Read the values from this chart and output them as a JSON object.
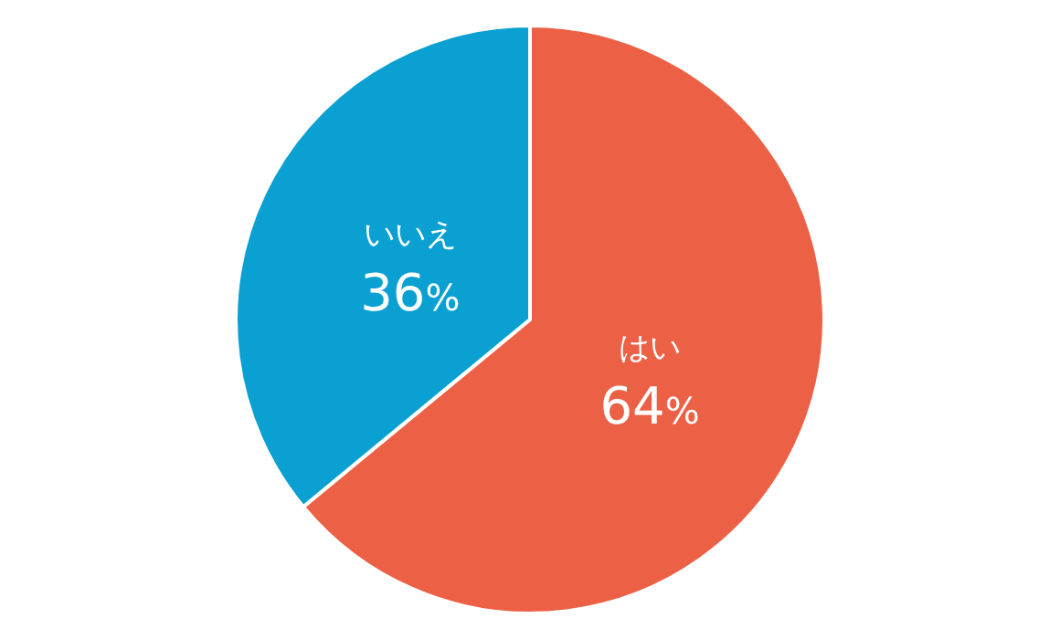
{
  "chart_data": {
    "type": "pie",
    "categories": [
      "はい",
      "いいえ"
    ],
    "values": [
      64,
      36
    ],
    "value_labels": [
      "64%",
      "36%"
    ],
    "colors": [
      "#ec6146",
      "#0ba0d2"
    ]
  }
}
